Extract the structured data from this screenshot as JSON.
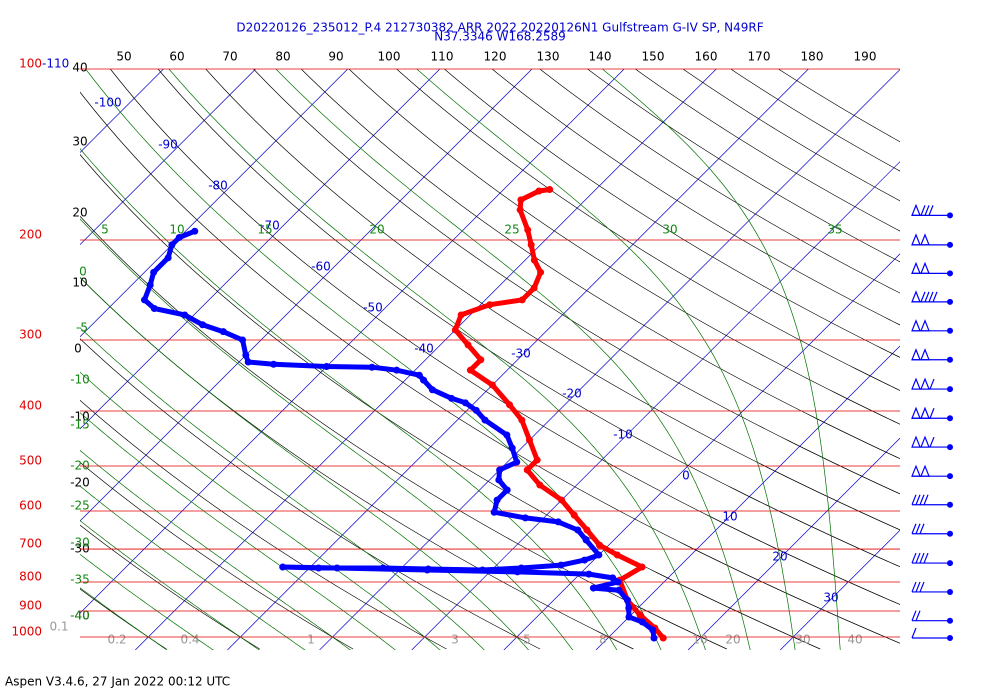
{
  "chart_data": {
    "type": "skewt",
    "title": "D20220126_235012_P.4 212730382 ARR 2022  20220126N1 Gulfstream G-IV SP, N49RF",
    "subtitle": "N37.3346 W168.2589",
    "footer": "Aspen V3.4.6, 27 Jan 2022  00:12 UTC",
    "plim": [
      100,
      1054
    ],
    "xlim": [
      -46,
      43
    ],
    "pressure_levels": [
      100,
      200,
      300,
      400,
      500,
      600,
      700,
      800,
      900,
      1000
    ],
    "isotherms": [
      -110,
      -100,
      -90,
      -80,
      -70,
      -60,
      -50,
      -40,
      -30,
      -20,
      -10,
      0,
      10,
      20,
      30
    ],
    "dry_adiabats": [
      -40,
      -30,
      -20,
      -10,
      0,
      10,
      20,
      30,
      40,
      50,
      60,
      70,
      80,
      90,
      100,
      110,
      120,
      130,
      140,
      150,
      160,
      170,
      180,
      190
    ],
    "moist_adiabats": [
      -40,
      -35,
      -30,
      -25,
      -20,
      -15,
      -10,
      -5,
      0,
      5,
      10,
      15,
      20,
      25,
      30,
      35
    ],
    "mixing_ratios": [
      0.1,
      0.2,
      0.4,
      1,
      3,
      5,
      8,
      10,
      20,
      30,
      40
    ],
    "series": [
      {
        "color": "#ff0000",
        "pressure": [
          163,
          164,
          170,
          177,
          192,
          204,
          217,
          228,
          243,
          255,
          260,
          271,
          288,
          306,
          325,
          339,
          360,
          390,
          415,
          450,
          488,
          508,
          540,
          574,
          610,
          648,
          689,
          717,
          753,
          794,
          861,
          915,
          964,
          1004
        ],
        "values": [
          -45,
          -46,
          -47,
          -46,
          -43,
          -41,
          -39,
          -37,
          -36,
          -36,
          -39,
          -41,
          -40,
          -37,
          -34,
          -34,
          -30,
          -26,
          -23,
          -20,
          -17,
          -17,
          -14,
          -10,
          -7,
          -4,
          -1,
          2,
          6,
          5,
          8,
          11,
          14,
          16
        ]
      },
      {
        "color": "#0000ff",
        "pressure": [
          193,
          198,
          204,
          215,
          228,
          240,
          255,
          264,
          271,
          282,
          290,
          300,
          319,
          328,
          331,
          334,
          335,
          339,
          346,
          353,
          367,
          380,
          387,
          399,
          415,
          441,
          465,
          492,
          508,
          529,
          551,
          574,
          603,
          617,
          627,
          648,
          675,
          717,
          732,
          747,
          756,
          762,
          759,
          756,
          756,
          753,
          756,
          762,
          768,
          775,
          787,
          800,
          820,
          827,
          861,
          889,
          922,
          941,
          972,
          1004
        ],
        "values": [
          -79,
          -80,
          -80,
          -79,
          -79,
          -78,
          -77,
          -75,
          -71,
          -68,
          -65,
          -62,
          -60,
          -59,
          -56,
          -50,
          -45,
          -42,
          -39,
          -38,
          -36,
          -33,
          -31,
          -29,
          -27,
          -23,
          -21,
          -19,
          -20,
          -19,
          -17,
          -17,
          -16,
          -12,
          -8,
          -5,
          -3,
          0,
          -1,
          -3,
          -7,
          -11,
          -17,
          -22,
          -29,
          -33,
          -27,
          -17,
          -7,
          1,
          4,
          5,
          3,
          6,
          8,
          9,
          10,
          12,
          14,
          15
        ]
      }
    ],
    "wind": {
      "color": "#0000ff",
      "pressure": [
        181,
        204,
        229,
        257,
        289,
        325,
        366,
        412,
        463,
        521,
        585,
        658,
        741,
        833,
        936,
        1004
      ],
      "speed": [
        80,
        100,
        100,
        90,
        100,
        100,
        110,
        110,
        110,
        100,
        40,
        30,
        40,
        30,
        20,
        10
      ]
    }
  }
}
